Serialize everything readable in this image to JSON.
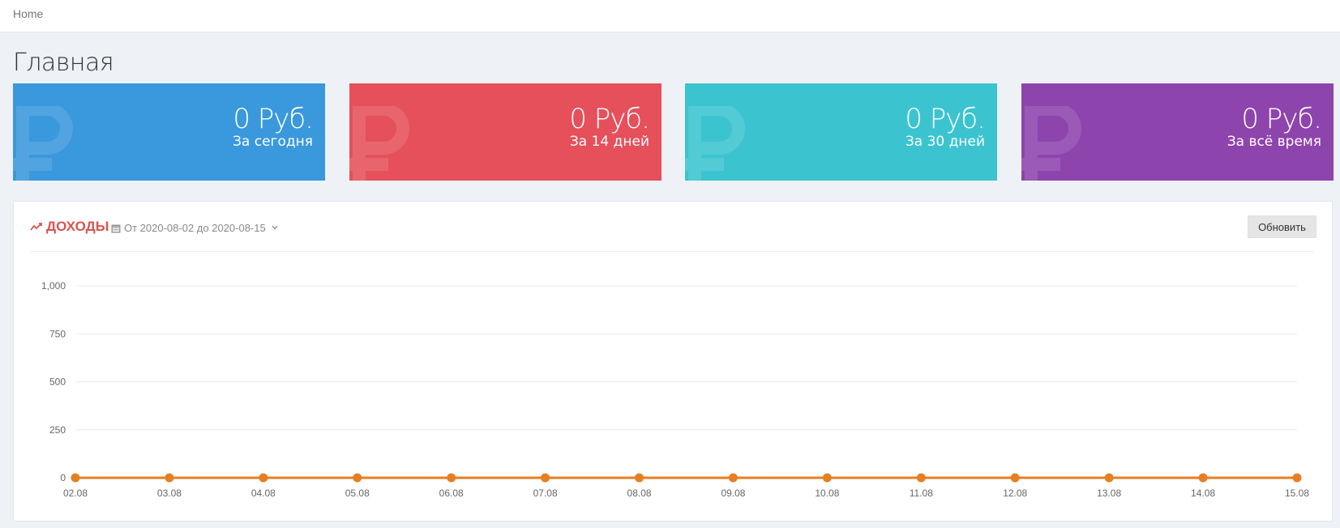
{
  "breadcrumb": {
    "home": "Home"
  },
  "page": {
    "title": "Главная"
  },
  "stats": [
    {
      "value": "0 Руб.",
      "label": "За сегодня",
      "color": "#3a98dc"
    },
    {
      "value": "0 Руб.",
      "label": "За 14 дней",
      "color": "#e5505b"
    },
    {
      "value": "0 Руб.",
      "label": "За 30 дней",
      "color": "#3bc4d0"
    },
    {
      "value": "0 Руб.",
      "label": "За всё время",
      "color": "#8e44ad"
    }
  ],
  "panel": {
    "caption": "ДОХОДЫ",
    "date_range": "От 2020-08-02 до 2020-08-15",
    "refresh_label": "Обновить",
    "icons": {
      "trend": "line-chart-icon",
      "calendar": "calendar-icon",
      "dropdown": "chevron-down-icon"
    }
  },
  "chart_data": {
    "type": "line",
    "categories": [
      "02.08",
      "03.08",
      "04.08",
      "05.08",
      "06.08",
      "07.08",
      "08.08",
      "09.08",
      "10.08",
      "11.08",
      "12.08",
      "13.08",
      "14.08",
      "15.08"
    ],
    "series": [
      {
        "values": [
          0,
          0,
          0,
          0,
          0,
          0,
          0,
          0,
          0,
          0,
          0,
          0,
          0,
          0
        ],
        "color": "#e67e22"
      }
    ],
    "yticks": [
      "0",
      "250",
      "500",
      "750",
      "1,000"
    ],
    "ylim": [
      0,
      1000
    ],
    "grid": true
  }
}
